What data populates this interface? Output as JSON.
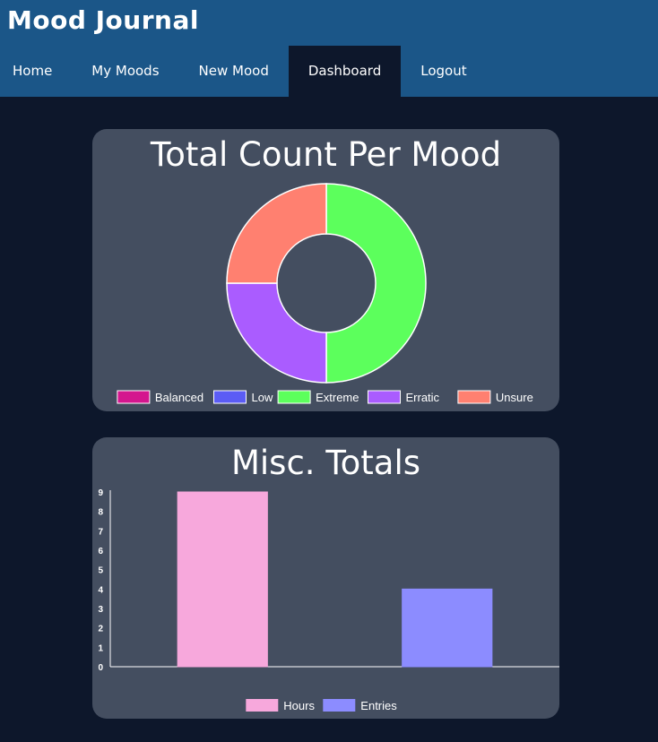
{
  "app": {
    "title": "Mood Journal"
  },
  "nav": {
    "items": [
      {
        "label": "Home"
      },
      {
        "label": "My Moods"
      },
      {
        "label": "New Mood"
      },
      {
        "label": "Dashboard"
      },
      {
        "label": "Logout"
      }
    ]
  },
  "chart_data": [
    {
      "type": "pie",
      "title": "Total Count Per Mood",
      "categories": [
        "Balanced",
        "Low",
        "Extreme",
        "Erratic",
        "Unsure"
      ],
      "values": [
        0,
        0,
        2,
        1,
        1
      ],
      "colors": [
        "#d4168e",
        "#5b5cf5",
        "#5cff5c",
        "#aa5cff",
        "#ff8070"
      ],
      "legend": "bottom"
    },
    {
      "type": "bar",
      "title": "Misc. Totals",
      "categories": [
        "Hours",
        "Entries"
      ],
      "values": [
        9,
        4
      ],
      "colors": [
        "#f7a8dc",
        "#8c8cff"
      ],
      "ylim": [
        0,
        9
      ],
      "yticks": [
        0,
        1,
        2,
        3,
        4,
        5,
        6,
        7,
        8,
        9
      ],
      "legend": "bottom"
    }
  ]
}
